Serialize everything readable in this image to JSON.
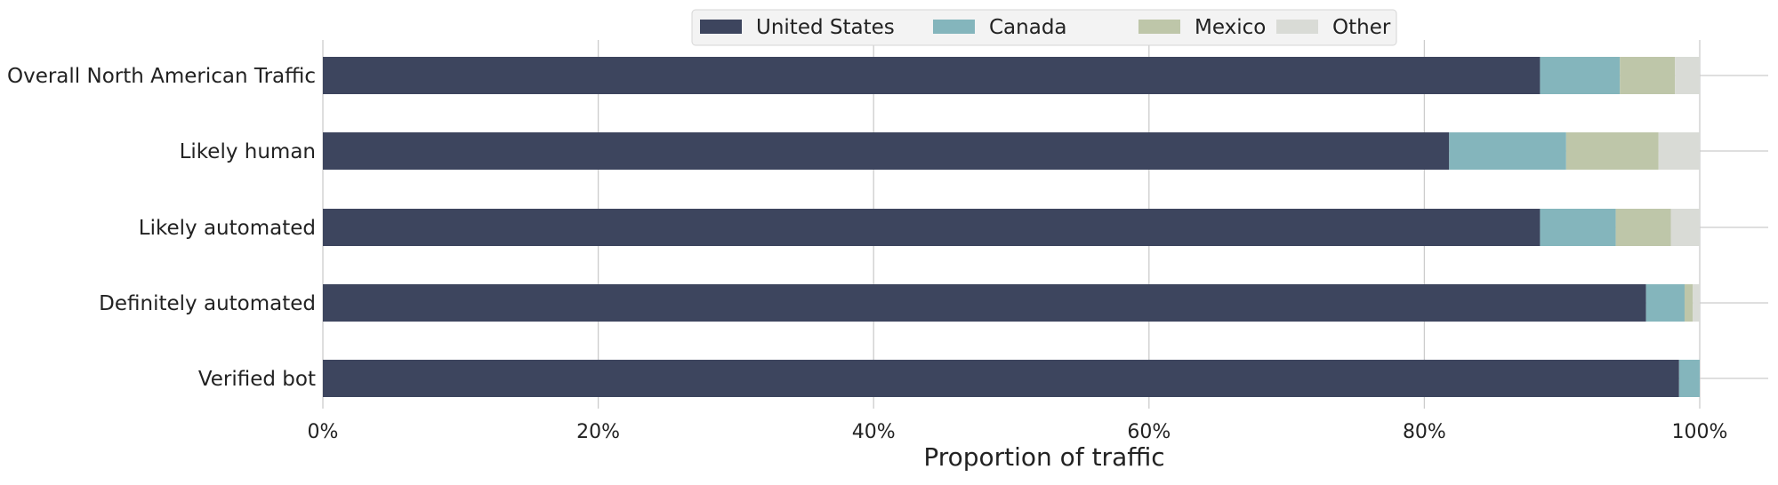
{
  "chart_data": {
    "type": "bar",
    "orientation": "horizontal",
    "stacked": true,
    "categories": [
      "Overall North American Traffic",
      "Likely human",
      "Likely automated",
      "Definitely automated",
      "Verified bot"
    ],
    "series": [
      {
        "name": "United States",
        "color": "#3d455e",
        "values": [
          88.4,
          81.8,
          88.4,
          96.1,
          98.5
        ]
      },
      {
        "name": "Canada",
        "color": "#84b5bc",
        "values": [
          5.8,
          8.5,
          5.5,
          2.8,
          1.5
        ]
      },
      {
        "name": "Mexico",
        "color": "#bec6a9",
        "values": [
          4.0,
          6.7,
          4.0,
          0.6,
          0.0
        ]
      },
      {
        "name": "Other",
        "color": "#d9dbd6",
        "values": [
          1.8,
          3.0,
          2.1,
          0.5,
          0.0
        ]
      }
    ],
    "xlim": [
      0,
      100
    ],
    "xticks": [
      "0%",
      "20%",
      "40%",
      "60%",
      "80%",
      "100%"
    ],
    "xlabel": "Proportion of traffic",
    "ylabel": "",
    "title": "",
    "legend_position": "top-center",
    "grid": "vertical"
  }
}
